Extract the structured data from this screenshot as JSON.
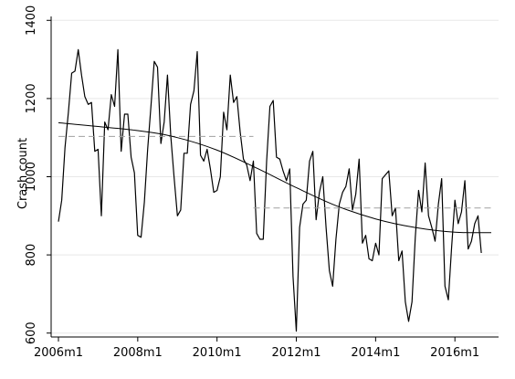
{
  "chart_data": {
    "type": "line",
    "title": "",
    "xlabel": "",
    "ylabel": "Crash count",
    "x_range": [
      "2006m1",
      "2016m12"
    ],
    "ylim": [
      590,
      1410
    ],
    "yticks": [
      600,
      800,
      1000,
      1200,
      1400
    ],
    "xticks": [
      {
        "label": "2006m1",
        "month": 0
      },
      {
        "label": "2008m1",
        "month": 24
      },
      {
        "label": "2010m1",
        "month": 48
      },
      {
        "label": "2012m1",
        "month": 72
      },
      {
        "label": "2014m1",
        "month": 96
      },
      {
        "label": "2016m1",
        "month": 120
      }
    ],
    "grid": true,
    "legend": "none",
    "series": [
      {
        "style": "solid-thin",
        "color": "#000000",
        "start": "2006m1",
        "values": [
          885,
          940,
          1075,
          1165,
          1265,
          1270,
          1325,
          1260,
          1205,
          1185,
          1190,
          1065,
          1070,
          900,
          1140,
          1120,
          1210,
          1180,
          1325,
          1065,
          1160,
          1160,
          1050,
          1010,
          850,
          845,
          935,
          1070,
          1180,
          1295,
          1280,
          1085,
          1140,
          1260,
          1105,
          1000,
          900,
          915,
          1060,
          1060,
          1185,
          1220,
          1320,
          1055,
          1040,
          1070,
          1020,
          960,
          965,
          1000,
          1165,
          1120,
          1260,
          1190,
          1205,
          1115,
          1045,
          1030,
          990,
          1040,
          855,
          840,
          840,
          1040,
          1180,
          1195,
          1050,
          1045,
          1015,
          990,
          1020,
          745,
          605,
          870,
          930,
          940,
          1040,
          1065,
          890,
          960,
          1000,
          870,
          760,
          720,
          840,
          930,
          960,
          975,
          1020,
          915,
          955,
          1045,
          830,
          850,
          790,
          785,
          830,
          800,
          995,
          1005,
          1015,
          900,
          920,
          785,
          810,
          680,
          630,
          680,
          845,
          965,
          910,
          1035,
          900,
          870,
          835,
          930,
          995,
          720,
          685,
          820,
          940,
          880,
          910,
          990,
          815,
          835,
          880,
          900,
          805
        ]
      },
      {
        "style": "dashed-mean",
        "color": "#a0a0a0",
        "segments": [
          {
            "from": "2006m1",
            "to": "2010m12",
            "value": 1103
          },
          {
            "from": "2010m12",
            "to": "2016m12",
            "value": 920
          }
        ]
      },
      {
        "style": "smooth-trend",
        "color": "#000000",
        "points": [
          [
            0,
            1138
          ],
          [
            24,
            1118
          ],
          [
            36,
            1100
          ],
          [
            48,
            1068
          ],
          [
            60,
            1022
          ],
          [
            72,
            972
          ],
          [
            84,
            926
          ],
          [
            96,
            892
          ],
          [
            108,
            870
          ],
          [
            120,
            858
          ],
          [
            131,
            857
          ]
        ]
      }
    ]
  }
}
